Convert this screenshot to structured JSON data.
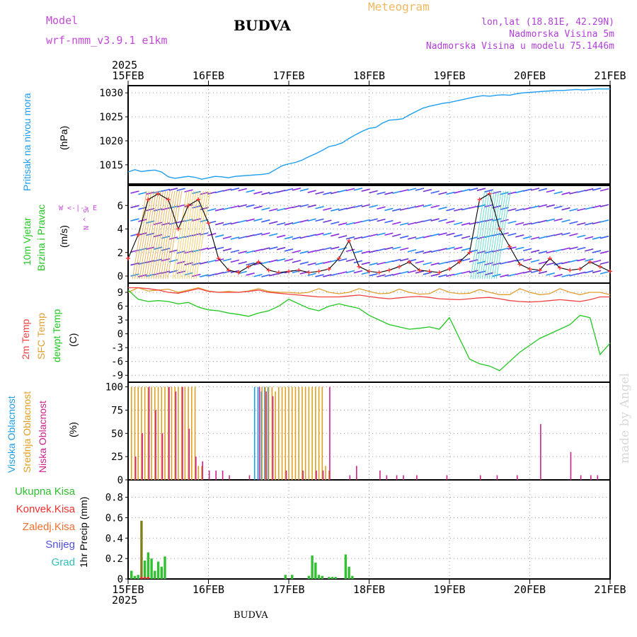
{
  "header": {
    "model_label": "Model",
    "model_name": "wrf-nmm_v3.9.1 e1km",
    "station": "BUDVA",
    "product": "Meteogram",
    "lonlat": "lon,lat (18.81E, 42.29N)",
    "elevation": "Nadmorska Visina 5m",
    "model_elevation": "Nadmorska Visina u modelu 75.1446m"
  },
  "footer": {
    "station": "BUDVA",
    "watermark": "made by Angel"
  },
  "x_axis": {
    "year": "2025",
    "ticks": [
      "15FEB",
      "16FEB",
      "17FEB",
      "18FEB",
      "19FEB",
      "20FEB",
      "21FEB"
    ]
  },
  "panel_labels": {
    "pressure": {
      "title": "Pritisak na nivou mora",
      "unit": "(hPa)"
    },
    "wind": {
      "title1": "10m Vjetar",
      "title2": "Brzina i Pravac",
      "unit": "(m/s)",
      "compass": "W <-|-> E",
      "compass_ns": "N ^ S"
    },
    "temp": {
      "t2m": "2m Temp",
      "tsfc": "SFC Temp",
      "tdew": "dewpt Temp",
      "unit": "(C)"
    },
    "cloud": {
      "high": "Visoka Oblacnost",
      "mid": "Srednja Oblacnost",
      "low": "Niska Oblacnost",
      "unit": "(%)"
    },
    "precip": {
      "total": "Ukupna Kisa",
      "conv": "Konvek.Kisa",
      "frozen": "Zaledj.Kisa",
      "snow": "Snijeg",
      "hail": "Grad",
      "unit": "1hr Precip (mm)"
    }
  },
  "colors": {
    "pressure": "#1e9ef0",
    "wind_speed": "#000000",
    "wind_marker": "#ff3030",
    "t2m": "#f04040",
    "tsfc": "#e0a030",
    "tdew": "#20c820",
    "cloud_high": "#1e9ee8",
    "cloud_mid": "#e0a020",
    "cloud_low": "#d0208c",
    "precip_total": "#30c030",
    "precip_conv": "#f03030",
    "precip_frozen": "#f07030",
    "precip_snow": "#5050e0",
    "precip_hail": "#30c0c0",
    "precip_dark": "#808020"
  },
  "chart_data": [
    {
      "type": "line",
      "name": "pressure",
      "ylim": [
        1011,
        1031.5
      ],
      "yticks": [
        1015,
        1020,
        1025,
        1030
      ],
      "x": [
        0,
        2,
        4,
        6,
        8,
        10,
        12,
        14,
        16,
        18,
        20,
        22,
        24,
        26,
        28,
        30,
        32,
        34,
        36,
        38,
        40,
        42,
        44,
        46,
        48,
        50,
        52,
        54,
        56,
        58,
        60,
        62,
        64,
        66,
        68,
        70,
        72,
        74,
        76,
        78,
        80,
        82,
        84,
        86,
        88,
        90,
        92,
        94,
        96,
        98,
        100,
        102,
        104,
        106,
        108,
        110,
        112,
        114,
        116,
        118,
        120,
        122,
        124,
        126,
        128,
        130,
        132,
        134,
        136,
        138,
        140,
        142,
        144
      ],
      "series": [
        {
          "name": "Pritisak na nivou mora",
          "values": [
            1013.5,
            1014.0,
            1013.6,
            1013.8,
            1013.9,
            1013.5,
            1012.5,
            1012.2,
            1012.4,
            1012.6,
            1012.4,
            1012.0,
            1012.3,
            1012.6,
            1012.5,
            1012.3,
            1012.6,
            1012.7,
            1012.8,
            1012.9,
            1013.0,
            1013.2,
            1014.0,
            1014.8,
            1015.2,
            1015.5,
            1016.0,
            1016.7,
            1017.3,
            1018.0,
            1018.8,
            1019.1,
            1019.6,
            1020.5,
            1021.3,
            1022.0,
            1022.6,
            1022.8,
            1023.7,
            1024.3,
            1024.4,
            1024.6,
            1025.4,
            1026.1,
            1026.8,
            1027.2,
            1027.5,
            1027.8,
            1028.0,
            1028.3,
            1028.6,
            1028.9,
            1029.2,
            1029.4,
            1029.3,
            1029.5,
            1029.6,
            1029.5,
            1029.8,
            1030.0,
            1030.1,
            1030.2,
            1030.3,
            1030.4,
            1030.5,
            1030.5,
            1030.6,
            1030.7,
            1030.6,
            1030.7,
            1030.8,
            1030.8,
            1030.8
          ]
        }
      ]
    },
    {
      "type": "line",
      "name": "wind",
      "ylim": [
        -0.6,
        7.7
      ],
      "yticks": [
        0,
        2,
        4,
        6
      ],
      "x": [
        0,
        3,
        6,
        9,
        12,
        15,
        18,
        21,
        24,
        27,
        30,
        33,
        36,
        39,
        42,
        45,
        48,
        51,
        54,
        57,
        60,
        63,
        66,
        69,
        72,
        75,
        78,
        81,
        84,
        87,
        90,
        93,
        96,
        99,
        102,
        105,
        108,
        111,
        114,
        117,
        120,
        123,
        126,
        129,
        132,
        135,
        138,
        141,
        144
      ],
      "series": [
        {
          "name": "10m Vjetar",
          "values": [
            1.5,
            3.5,
            6.5,
            7.0,
            6.5,
            4.0,
            6.0,
            6.5,
            4.5,
            1.5,
            0.5,
            0.3,
            0.8,
            1.2,
            0.5,
            0.3,
            0.4,
            0.5,
            0.3,
            0.4,
            0.6,
            1.5,
            3.0,
            0.8,
            0.4,
            0.3,
            0.5,
            0.8,
            1.2,
            0.5,
            0.4,
            0.3,
            0.6,
            1.2,
            2.0,
            6.5,
            7.0,
            4.0,
            2.5,
            1.0,
            0.6,
            0.5,
            1.5,
            0.7,
            0.5,
            0.6,
            1.2,
            0.8,
            0.4
          ]
        }
      ]
    },
    {
      "type": "line",
      "name": "temperature",
      "ylim": [
        -10.5,
        11
      ],
      "yticks": [
        9,
        6,
        3,
        0,
        -3,
        -6,
        -9
      ],
      "x": [
        0,
        3,
        6,
        9,
        12,
        15,
        18,
        21,
        24,
        27,
        30,
        33,
        36,
        39,
        42,
        45,
        48,
        51,
        54,
        57,
        60,
        63,
        66,
        69,
        72,
        75,
        78,
        81,
        84,
        87,
        90,
        93,
        96,
        99,
        102,
        105,
        108,
        111,
        114,
        117,
        120,
        123,
        126,
        129,
        132,
        135,
        138,
        141,
        144
      ],
      "series": [
        {
          "name": "2m Temp",
          "values": [
            10.0,
            10.0,
            9.8,
            9.5,
            9.0,
            8.8,
            9.3,
            9.8,
            9.2,
            9.0,
            9.0,
            9.0,
            9.2,
            9.5,
            9.0,
            8.8,
            8.6,
            8.4,
            8.2,
            8.0,
            8.0,
            8.0,
            8.2,
            8.4,
            8.1,
            7.8,
            7.6,
            7.8,
            8.0,
            8.1,
            7.9,
            7.6,
            7.5,
            7.4,
            7.6,
            7.8,
            7.9,
            7.6,
            7.2,
            7.0,
            6.9,
            7.0,
            7.2,
            7.4,
            7.2,
            7.0,
            7.4,
            8.0,
            8.0
          ]
        },
        {
          "name": "SFC Temp",
          "values": [
            9.0,
            10.0,
            9.3,
            9.5,
            9.7,
            9.0,
            9.5,
            10.0,
            9.3,
            9.0,
            9.2,
            9.0,
            9.3,
            9.8,
            9.2,
            9.0,
            9.0,
            8.8,
            9.0,
            9.8,
            9.0,
            8.7,
            9.0,
            9.8,
            9.2,
            8.7,
            8.8,
            9.7,
            9.0,
            8.6,
            8.7,
            9.8,
            9.0,
            8.7,
            8.8,
            9.6,
            9.0,
            8.5,
            8.5,
            9.8,
            9.0,
            8.5,
            8.7,
            9.8,
            9.0,
            8.5,
            9.0,
            9.0,
            8.5
          ]
        },
        {
          "name": "dewpt Temp",
          "values": [
            9.5,
            7.5,
            7.0,
            7.2,
            7.0,
            6.5,
            6.8,
            5.8,
            5.2,
            5.0,
            4.5,
            4.2,
            3.8,
            4.5,
            5.0,
            6.0,
            7.5,
            6.5,
            5.5,
            5.0,
            6.0,
            6.5,
            6.0,
            5.5,
            4.0,
            3.0,
            2.0,
            1.5,
            1.0,
            1.2,
            1.5,
            1.0,
            3.5,
            -1.0,
            -5.5,
            -6.5,
            -7.0,
            -8.0,
            -6.0,
            -4.0,
            -2.5,
            -1.0,
            0.0,
            1.0,
            2.0,
            4.0,
            3.5,
            -4.5,
            -2.0
          ]
        }
      ]
    },
    {
      "type": "bar",
      "name": "cloud_cover",
      "ylim": [
        0,
        105
      ],
      "yticks": [
        0,
        25,
        50,
        75,
        100
      ],
      "series": [
        {
          "name": "Visoka Oblacnost",
          "x": [
            38,
            39,
            40,
            41,
            42
          ],
          "values": [
            100,
            100,
            95,
            100,
            100
          ]
        },
        {
          "name": "Srednja Oblacnost",
          "x": [
            1,
            2,
            3,
            4,
            5,
            6,
            7,
            8,
            9,
            10,
            11,
            12,
            13,
            14,
            15,
            16,
            17,
            18,
            19,
            20,
            21,
            22,
            40,
            41,
            42,
            43,
            44,
            45,
            46,
            47,
            48,
            49,
            50,
            51,
            52,
            53,
            54,
            55,
            56,
            57,
            58,
            59,
            60
          ],
          "values": [
            100,
            100,
            100,
            100,
            100,
            100,
            100,
            100,
            100,
            100,
            100,
            100,
            100,
            100,
            100,
            100,
            100,
            100,
            100,
            100,
            15,
            15,
            100,
            100,
            100,
            100,
            95,
            100,
            100,
            100,
            100,
            100,
            100,
            100,
            100,
            100,
            100,
            100,
            100,
            100,
            100,
            15,
            10
          ]
        },
        {
          "name": "Niska Oblacnost",
          "x": [
            2,
            4,
            6,
            8,
            10,
            12,
            14,
            16,
            18,
            20,
            22,
            24,
            26,
            28,
            30,
            36,
            39,
            41,
            43,
            47,
            52,
            56,
            58,
            60,
            66,
            68,
            75,
            77,
            80,
            82,
            86,
            95,
            105,
            110,
            116,
            123,
            132,
            135,
            138,
            140
          ],
          "values": [
            25,
            50,
            100,
            75,
            50,
            100,
            95,
            100,
            55,
            25,
            20,
            10,
            10,
            10,
            5,
            5,
            100,
            95,
            90,
            10,
            10,
            10,
            10,
            100,
            5,
            15,
            10,
            5,
            5,
            5,
            5,
            5,
            5,
            5,
            5,
            60,
            30,
            5,
            5,
            5
          ]
        }
      ]
    },
    {
      "type": "bar",
      "name": "precipitation",
      "ylim": [
        0,
        0.97
      ],
      "yticks": [
        0,
        0.2,
        0.4,
        0.6,
        0.8
      ],
      "series": [
        {
          "name": "Ukupna Kisa",
          "x": [
            1,
            2,
            3,
            4,
            5,
            6,
            7,
            8,
            9,
            10,
            11,
            47,
            49,
            54,
            55,
            56,
            57,
            58,
            60,
            61,
            62,
            65,
            66,
            67
          ],
          "values": [
            0.08,
            0.03,
            0.04,
            0.57,
            0.18,
            0.26,
            0.2,
            0.08,
            0.17,
            0.12,
            0.22,
            0.04,
            0.04,
            0.03,
            0.23,
            0.16,
            0.04,
            0.03,
            0.02,
            0.02,
            0.02,
            0.24,
            0.12,
            0.03
          ]
        },
        {
          "name": "Konvek.Kisa",
          "x": [
            4,
            5,
            6
          ],
          "values": [
            0.02,
            0.02,
            0.02
          ]
        },
        {
          "name": "Zaledj.Kisa",
          "x": [],
          "values": []
        },
        {
          "name": "Snijeg",
          "x": [],
          "values": []
        },
        {
          "name": "Grad",
          "x": [],
          "values": []
        }
      ]
    }
  ]
}
